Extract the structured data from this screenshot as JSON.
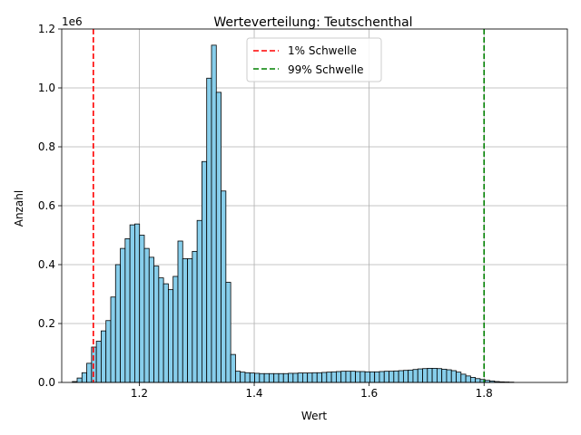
{
  "chart_data": {
    "type": "bar",
    "title": "Werteverteilung: Teutschenthal",
    "xlabel": "Wert",
    "ylabel": "Anzahl",
    "y_scale_label": "1e6",
    "xlim": [
      1.065,
      1.945
    ],
    "ylim": [
      0,
      1200000
    ],
    "grid": true,
    "legend_position": "top-center",
    "bar_fill": "#87ceeb",
    "bar_edge": "#000000",
    "bin_start": 1.0835,
    "bin_width": 0.00835,
    "x_ticks": [
      1.2,
      1.4,
      1.6,
      1.8
    ],
    "x_tick_labels": [
      "1.2",
      "1.4",
      "1.6",
      "1.8"
    ],
    "y_ticks": [
      0,
      200000,
      400000,
      600000,
      800000,
      1000000,
      1200000
    ],
    "y_tick_labels": [
      "0.0",
      "0.2",
      "0.4",
      "0.6",
      "0.8",
      "1.0",
      "1.2"
    ],
    "values": [
      3000,
      15000,
      33000,
      65000,
      120000,
      140000,
      175000,
      210000,
      290000,
      400000,
      455000,
      488000,
      535000,
      538000,
      500000,
      455000,
      425000,
      395000,
      355000,
      335000,
      315000,
      360000,
      480000,
      420000,
      420000,
      445000,
      550000,
      750000,
      1033000,
      1145000,
      985000,
      650000,
      340000,
      95000,
      38000,
      35000,
      33000,
      32000,
      31000,
      30000,
      30000,
      30000,
      30000,
      30000,
      30000,
      31000,
      31000,
      32000,
      32000,
      32000,
      33000,
      33000,
      34000,
      35000,
      36000,
      37000,
      38000,
      38000,
      38000,
      37000,
      37000,
      36000,
      36000,
      36000,
      37000,
      38000,
      38000,
      39000,
      40000,
      41000,
      42000,
      44000,
      46000,
      47000,
      48000,
      48000,
      47000,
      45000,
      43000,
      40000,
      35000,
      28000,
      22000,
      17000,
      13000,
      10000,
      7000,
      5000,
      3000,
      2000,
      1500,
      1000
    ],
    "thresholds": [
      {
        "name": "1% Schwelle",
        "x": 1.12,
        "color": "#ff0000"
      },
      {
        "name": "99% Schwelle",
        "x": 1.8,
        "color": "#008000"
      }
    ]
  }
}
